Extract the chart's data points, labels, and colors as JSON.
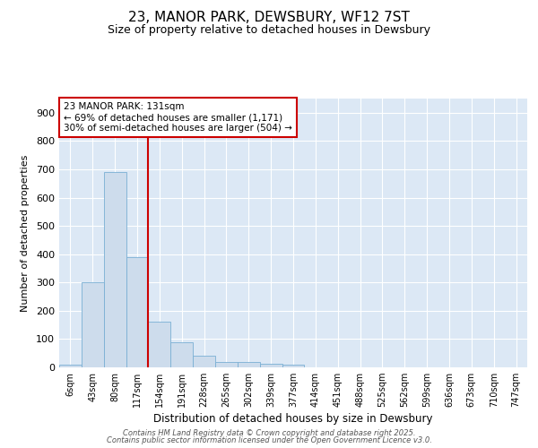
{
  "title": "23, MANOR PARK, DEWSBURY, WF12 7ST",
  "subtitle": "Size of property relative to detached houses in Dewsbury",
  "xlabel": "Distribution of detached houses by size in Dewsbury",
  "ylabel": "Number of detached properties",
  "categories": [
    "6sqm",
    "43sqm",
    "80sqm",
    "117sqm",
    "154sqm",
    "191sqm",
    "228sqm",
    "265sqm",
    "302sqm",
    "339sqm",
    "377sqm",
    "414sqm",
    "451sqm",
    "488sqm",
    "525sqm",
    "562sqm",
    "599sqm",
    "636sqm",
    "673sqm",
    "710sqm",
    "747sqm"
  ],
  "values": [
    8,
    300,
    690,
    390,
    160,
    90,
    40,
    18,
    18,
    12,
    8,
    0,
    0,
    0,
    0,
    0,
    0,
    0,
    0,
    0,
    0
  ],
  "bar_color": "#cddcec",
  "bar_edge_color": "#7aafd4",
  "red_line_x": 3.5,
  "annotation_line1": "23 MANOR PARK: 131sqm",
  "annotation_line2": "← 69% of detached houses are smaller (1,171)",
  "annotation_line3": "30% of semi-detached houses are larger (504) →",
  "annotation_box_color": "#ffffff",
  "annotation_box_edge_color": "#cc0000",
  "ylim": [
    0,
    950
  ],
  "yticks": [
    0,
    100,
    200,
    300,
    400,
    500,
    600,
    700,
    800,
    900
  ],
  "background_color": "#dce8f5",
  "grid_color": "#ffffff",
  "footer_line1": "Contains HM Land Registry data © Crown copyright and database right 2025.",
  "footer_line2": "Contains public sector information licensed under the Open Government Licence v3.0."
}
